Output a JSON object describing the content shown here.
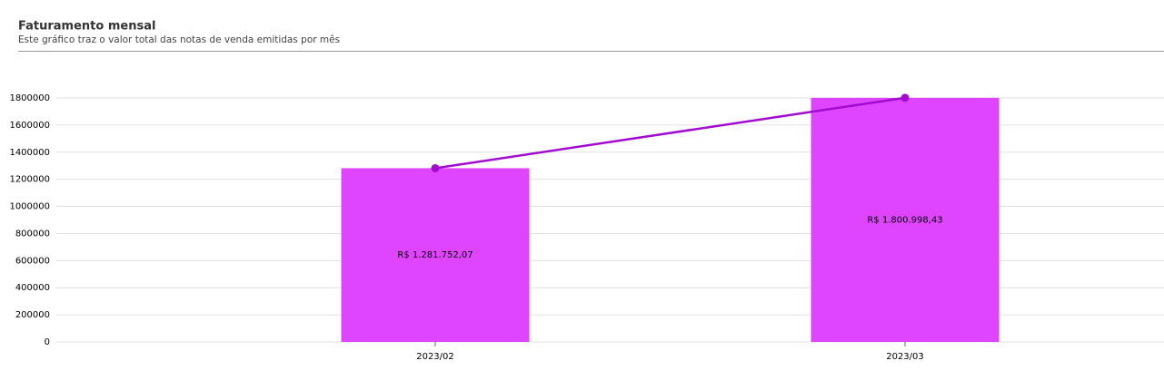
{
  "chart_data": {
    "type": "bar-line",
    "title": "Faturamento mensal",
    "subtitle": "Este gráfico traz o valor total das notas de venda emitidas por mês",
    "categories": [
      "2023/02",
      "2023/03"
    ],
    "series": [
      {
        "type": "bar",
        "color": "#df45ff",
        "values": [
          1281752.07,
          1800998.43
        ],
        "value_labels": [
          "R$ 1.281.752,07",
          "R$ 1.800.998,43"
        ]
      },
      {
        "type": "line",
        "color": "#a10cd0",
        "values": [
          1281752.07,
          1800998.43
        ]
      }
    ],
    "ylim": [
      0,
      1800000
    ],
    "yticks": [
      0,
      200000,
      400000,
      600000,
      800000,
      1000000,
      1200000,
      1400000,
      1600000,
      1800000
    ],
    "grid": true
  }
}
